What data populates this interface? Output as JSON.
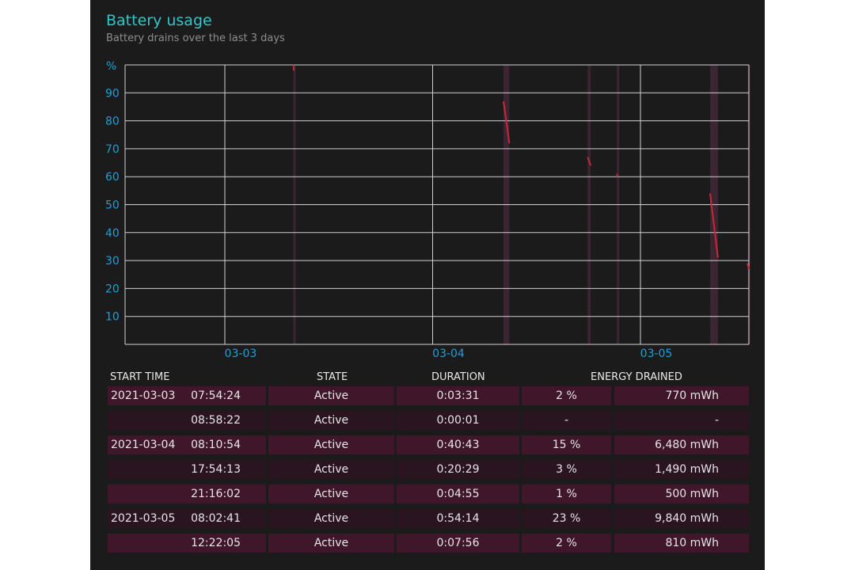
{
  "header": {
    "title": "Battery usage",
    "subtitle": "Battery drains over the last 3 days"
  },
  "chart_data": {
    "type": "line",
    "y_unit_label": "%",
    "y_ticks": [
      10,
      20,
      30,
      40,
      50,
      60,
      70,
      80,
      90
    ],
    "ylim": [
      0,
      100
    ],
    "x_ticks": [
      "03-03",
      "03-04",
      "03-05"
    ],
    "grid": true,
    "colors": {
      "line": "#c8283c",
      "active_band": "#3a2530",
      "axis_text": "#1f9fdc",
      "grid": "#d0d0d0"
    },
    "series": [
      {
        "points": [
          [
            "2021-03-03 07:54:24",
            100
          ],
          [
            "2021-03-03 07:57:55",
            98
          ]
        ]
      },
      {
        "points": [
          [
            "2021-03-04 08:10:54",
            87
          ],
          [
            "2021-03-04 08:51:37",
            72
          ]
        ]
      },
      {
        "points": [
          [
            "2021-03-04 17:54:13",
            67
          ],
          [
            "2021-03-04 18:14:42",
            64
          ]
        ]
      },
      {
        "points": [
          [
            "2021-03-04 21:16:02",
            61
          ],
          [
            "2021-03-04 21:20:57",
            60
          ]
        ]
      },
      {
        "points": [
          [
            "2021-03-05 08:02:41",
            54
          ],
          [
            "2021-03-05 08:56:55",
            31
          ]
        ]
      },
      {
        "points": [
          [
            "2021-03-05 12:22:05",
            29
          ],
          [
            "2021-03-05 12:30:01",
            27
          ]
        ]
      }
    ]
  },
  "table": {
    "headers": {
      "start_time": "START TIME",
      "state": "STATE",
      "duration": "DURATION",
      "energy_drained": "ENERGY DRAINED"
    },
    "rows": [
      {
        "date": "2021-03-03",
        "time": "07:54:24",
        "state": "Active",
        "duration": "0:03:31",
        "percent": "2 %",
        "mwh": "770 mWh"
      },
      {
        "date": "",
        "time": "08:58:22",
        "state": "Active",
        "duration": "0:00:01",
        "percent": "-",
        "mwh": "-"
      },
      {
        "date": "2021-03-04",
        "time": "08:10:54",
        "state": "Active",
        "duration": "0:40:43",
        "percent": "15 %",
        "mwh": "6,480 mWh"
      },
      {
        "date": "",
        "time": "17:54:13",
        "state": "Active",
        "duration": "0:20:29",
        "percent": "3 %",
        "mwh": "1,490 mWh"
      },
      {
        "date": "",
        "time": "21:16:02",
        "state": "Active",
        "duration": "0:04:55",
        "percent": "1 %",
        "mwh": "500 mWh"
      },
      {
        "date": "2021-03-05",
        "time": "08:02:41",
        "state": "Active",
        "duration": "0:54:14",
        "percent": "23 %",
        "mwh": "9,840 mWh"
      },
      {
        "date": "",
        "time": "12:22:05",
        "state": "Active",
        "duration": "0:07:56",
        "percent": "2 %",
        "mwh": "810 mWh"
      }
    ]
  }
}
